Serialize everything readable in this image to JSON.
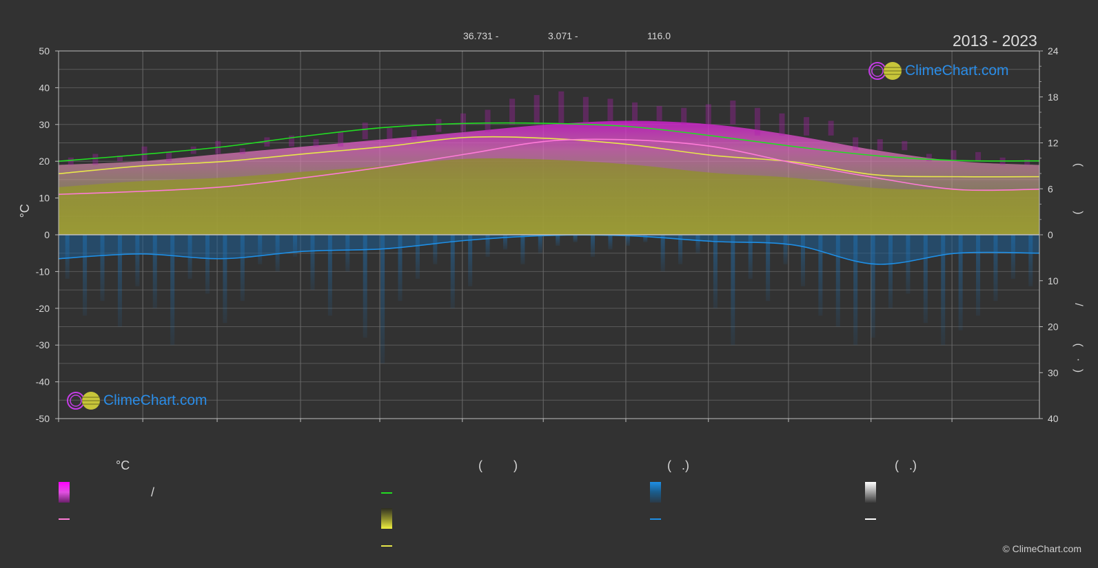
{
  "header": {
    "coord_lat": "36.731 -",
    "coord_lon": "3.071 -",
    "elevation": "116.0",
    "period": "2013 - 2023"
  },
  "logo_text": "ClimeChart.com",
  "copyright": "© ClimeChart.com",
  "colors": {
    "background": "#323232",
    "daylight": "#22dd22",
    "sunshine": "#e8e84a",
    "max_temp_line": "#ff7bd8",
    "precip": "#1e8fe6",
    "logo_blue": "#2a8de8"
  },
  "chart_data": {
    "type": "line",
    "x_axis": {
      "month_ticks": [
        "· ·",
        "· ·",
        "· ·",
        "· ·",
        "· ·",
        "· ·",
        "· ·",
        "· ·",
        "· ·",
        "· ·",
        "· ·",
        "· ·"
      ]
    },
    "left_axis": {
      "label": "°C",
      "ylim": [
        -50,
        50
      ],
      "ticks": [
        50,
        40,
        30,
        20,
        10,
        0,
        -10,
        -20,
        -30,
        -40,
        -50
      ]
    },
    "right_axis": {
      "upper_ticks": [
        24,
        18,
        12,
        6,
        0
      ],
      "lower_ticks": [
        10,
        20,
        30,
        40
      ],
      "upper_label_glyphs": [
        "(",
        ")"
      ],
      "lower_label_glyphs": [
        "/",
        "(",
        "·",
        ")"
      ]
    },
    "x": [
      0,
      1,
      2,
      3,
      4,
      5,
      6,
      7,
      8,
      9,
      10,
      11,
      12
    ],
    "series": [
      {
        "key": "daylight",
        "values": [
          20.0,
          21.8,
          23.9,
          26.8,
          29.2,
          30.3,
          30.3,
          29.4,
          26.9,
          24.0,
          21.5,
          20.2,
          20.1
        ]
      },
      {
        "key": "sunshine",
        "values": [
          16.6,
          18.7,
          19.9,
          22.0,
          24.0,
          26.5,
          26.2,
          24.5,
          21.6,
          19.8,
          16.3,
          15.8,
          15.8
        ]
      },
      {
        "key": "temp_line",
        "values": [
          11.0,
          11.8,
          13.0,
          15.5,
          18.5,
          22.0,
          25.5,
          25.8,
          24.0,
          19.5,
          15.5,
          12.3,
          12.4
        ]
      },
      {
        "key": "precip",
        "values": [
          -6.5,
          -5.2,
          -6.5,
          -4.5,
          -3.8,
          -1.5,
          -0.2,
          -0.3,
          -1.8,
          -2.8,
          -8.0,
          -5.0,
          -5.0
        ]
      }
    ],
    "band_max": [
      19,
      20,
      22,
      24,
      26,
      28,
      30,
      31,
      30,
      27,
      23,
      20,
      19
    ],
    "precip_spikes": [
      -12,
      -22,
      -18,
      -25,
      -14,
      -20,
      -30,
      -12,
      -16,
      -24,
      -18,
      -8,
      -10,
      -6,
      -15,
      -22,
      -10,
      -28,
      -35,
      -18,
      -12,
      -8,
      -20,
      -14,
      -6,
      -4,
      -8,
      -5,
      -3,
      -2,
      -6,
      -4,
      -3,
      -2,
      -10,
      -8,
      -5,
      -20,
      -30,
      -12,
      -18,
      -8,
      -14,
      -22,
      -25,
      -30,
      -28,
      -20,
      -16,
      -24,
      -30,
      -26,
      -22,
      -18,
      -12,
      -14
    ],
    "temp_spikes": [
      4,
      6,
      3,
      8,
      5,
      4,
      7,
      3,
      5,
      6,
      4,
      8,
      9,
      6,
      5,
      7,
      10,
      12,
      14,
      16,
      18,
      15,
      12,
      10,
      8,
      9,
      11,
      13,
      15,
      12,
      10,
      8,
      7,
      6,
      5,
      4,
      6,
      5,
      4,
      3
    ]
  },
  "legend": {
    "col1_header": "°C",
    "col1_sep": "/",
    "col2_header": "(         )",
    "col3_header": "(   .)",
    "col4_header": "(   .)"
  }
}
